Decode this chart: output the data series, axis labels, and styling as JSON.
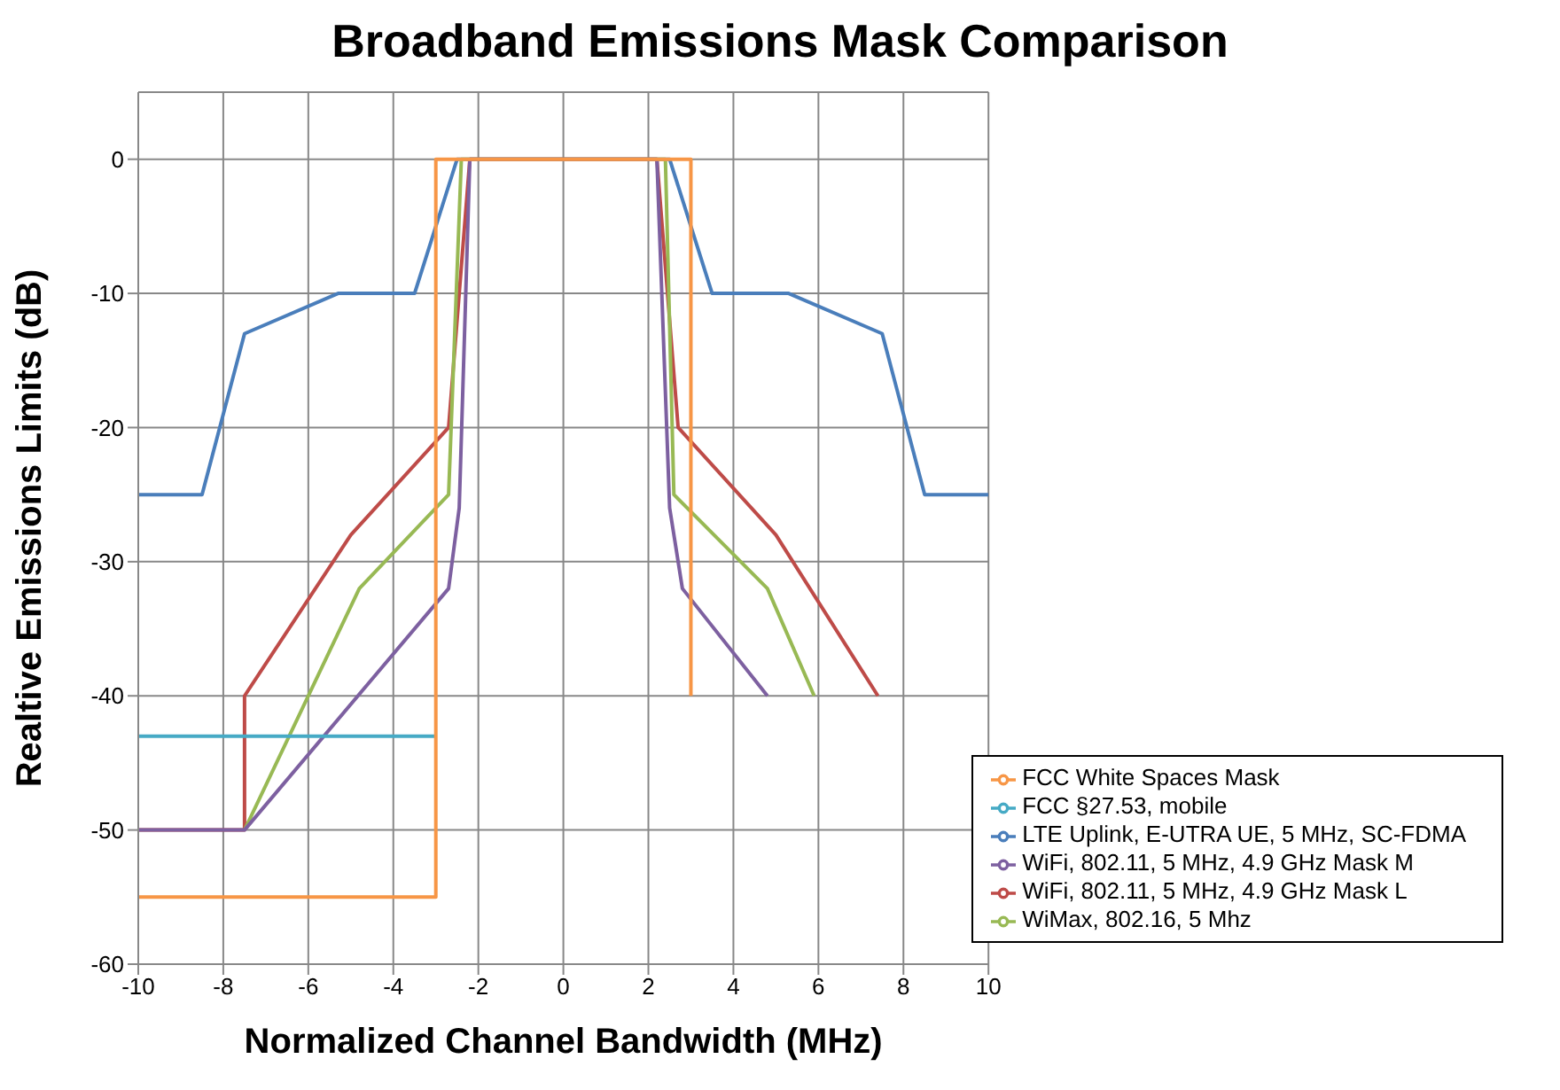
{
  "chart_data": {
    "type": "line",
    "title": "Broadband Emissions Mask Comparison",
    "xlabel": "Normalized Channel Bandwidth (MHz)",
    "ylabel": "Realtive Emissions Limits (dB)",
    "xlim": [
      -10,
      10
    ],
    "xticks": [
      -10,
      -8,
      -6,
      -4,
      -2,
      0,
      2,
      4,
      6,
      8,
      10
    ],
    "ylim": [
      -60,
      5
    ],
    "yticks": [
      -60,
      -50,
      -40,
      -30,
      -20,
      -10,
      0
    ],
    "grid": true,
    "legend": "bottom right",
    "marker": "none",
    "line_style": "solid",
    "series": [
      {
        "name": "LTE Uplink, E-UTRA UE, 5 MHz, SC-FDMA",
        "color": "#4a7ebb",
        "x": [
          -10,
          -8.5,
          -7.5,
          -5.3,
          -3.5,
          -2.5,
          2.5,
          3.5,
          5.3,
          7.5,
          8.5,
          10
        ],
        "values": [
          -25,
          -25,
          -13,
          -10,
          -10,
          0,
          0,
          -10,
          -10,
          -13,
          -25,
          -25
        ]
      },
      {
        "name": "WiFi, 802.11, 5 MHz, 4.9 GHz Mask L",
        "color": "#be4b48",
        "x": [
          -10,
          -7.5,
          -7.5,
          -5,
          -2.7,
          -2.2,
          2.2,
          2.7,
          5,
          7.4
        ],
        "values": [
          -50,
          -50,
          -40,
          -28,
          -20,
          0,
          0,
          -20,
          -28,
          -40
        ]
      },
      {
        "name": "WiMax, 802.16, 5 Mhz",
        "color": "#98b954",
        "x": [
          -7.5,
          -4.8,
          -2.7,
          -2.4,
          2.4,
          2.6,
          4.8,
          5.9
        ],
        "values": [
          -50,
          -32,
          -25,
          0,
          0,
          -25,
          -32,
          -40
        ]
      },
      {
        "name": "WiFi, 802.11, 5 MHz,  4.9 GHz Mask M",
        "color": "#7d60a0",
        "x": [
          -10,
          -7.5,
          -2.7,
          -2.45,
          -2.2,
          2.2,
          2.5,
          2.8,
          4.8
        ],
        "values": [
          -50,
          -50,
          -32,
          -26,
          0,
          0,
          -26,
          -32,
          -40
        ]
      },
      {
        "name": "FCC §27.53, mobile",
        "color": "#46aac5",
        "x": [
          -10,
          -3
        ],
        "values": [
          -43,
          -43
        ]
      },
      {
        "name": "FCC White Spaces Mask",
        "color": "#f79646",
        "x": [
          -10,
          -3,
          -3,
          3,
          3
        ],
        "values": [
          -55,
          -55,
          0,
          0,
          -40
        ]
      }
    ]
  }
}
